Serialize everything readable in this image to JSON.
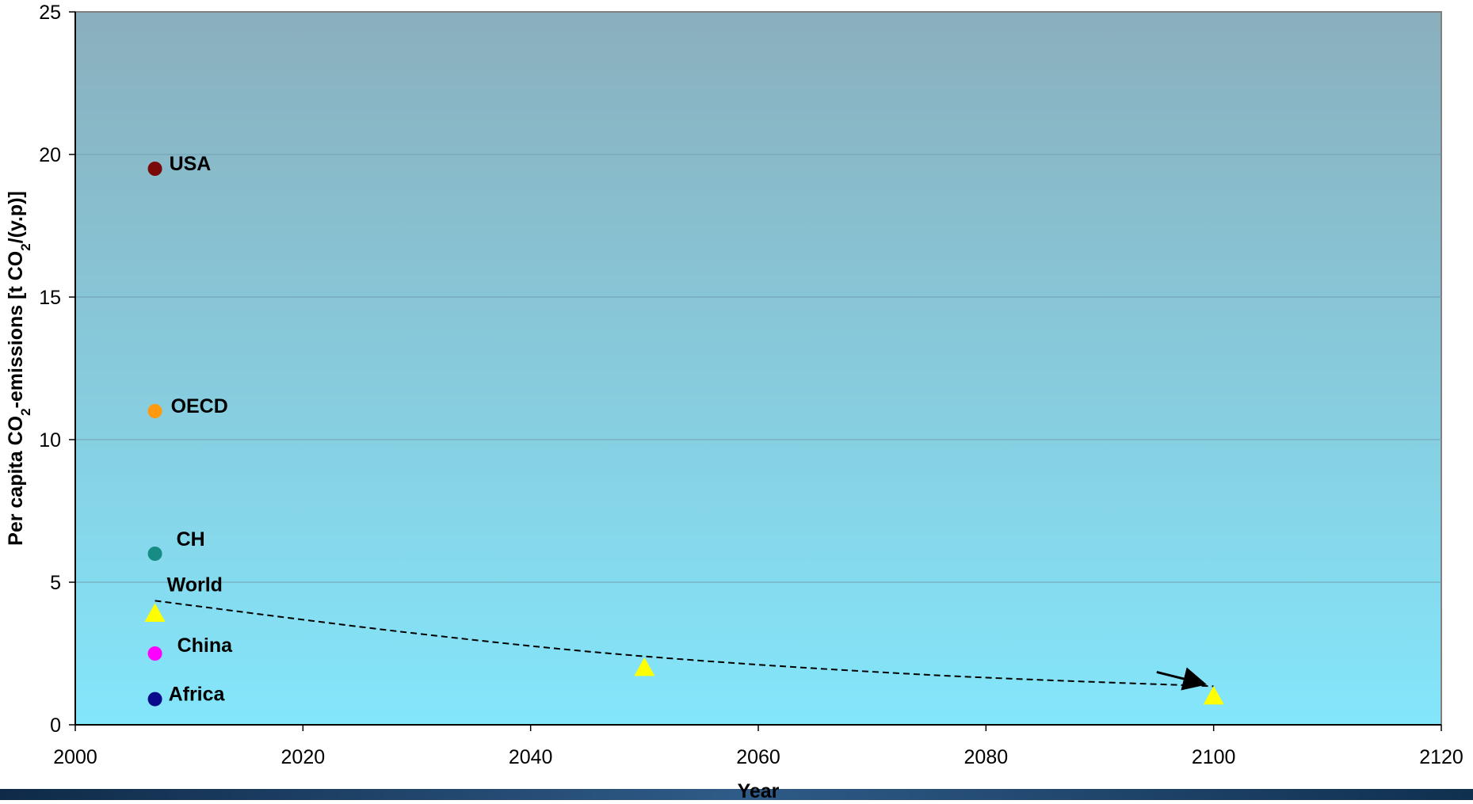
{
  "chart_data": {
    "type": "scatter",
    "title": "",
    "xlabel": "Year",
    "ylabel": {
      "part1": "Per capita CO",
      "sub1": "2",
      "part2": "-emissions [t CO",
      "sub2": "2",
      "part3": "/(y.p)]"
    },
    "xlim": [
      2000,
      2120
    ],
    "ylim": [
      0,
      25
    ],
    "xticks": [
      2000,
      2020,
      2040,
      2060,
      2080,
      2100,
      2120
    ],
    "yticks": [
      0,
      5,
      10,
      15,
      20,
      25
    ],
    "grid": true,
    "points": [
      {
        "label": "USA",
        "x": 2007,
        "y": 19.5,
        "color": "#7a0a0a",
        "marker": "circle"
      },
      {
        "label": "OECD",
        "x": 2007,
        "y": 11.0,
        "color": "#ff9a10",
        "marker": "circle"
      },
      {
        "label": "CH",
        "x": 2007,
        "y": 6.0,
        "color": "#168c84",
        "marker": "circle"
      },
      {
        "label": "China",
        "x": 2007,
        "y": 2.5,
        "color": "#ff00ff",
        "marker": "circle"
      },
      {
        "label": "Africa",
        "x": 2007,
        "y": 0.9,
        "color": "#0a0a8c",
        "marker": "circle"
      }
    ],
    "world_series": {
      "label": "World",
      "color": "#ffff00",
      "marker": "triangle",
      "points": [
        {
          "x": 2007,
          "y": 3.9
        },
        {
          "x": 2050,
          "y": 2.0
        },
        {
          "x": 2100,
          "y": 1.0
        }
      ]
    },
    "trend": {
      "style": "dashed",
      "color": "#000000",
      "points": [
        [
          2007,
          4.35
        ],
        [
          2030,
          3.2
        ],
        [
          2050,
          2.4
        ],
        [
          2075,
          1.75
        ],
        [
          2100,
          1.35
        ]
      ]
    },
    "arrow": {
      "color": "#000000",
      "from": [
        2095,
        1.85
      ],
      "to": [
        2099,
        1.45
      ]
    },
    "colors": {
      "plot_top": "#8aafbd",
      "plot_bottom": "#84e6fb",
      "gridline": "#6f9fb0",
      "footer_band": "#173a5e"
    }
  }
}
